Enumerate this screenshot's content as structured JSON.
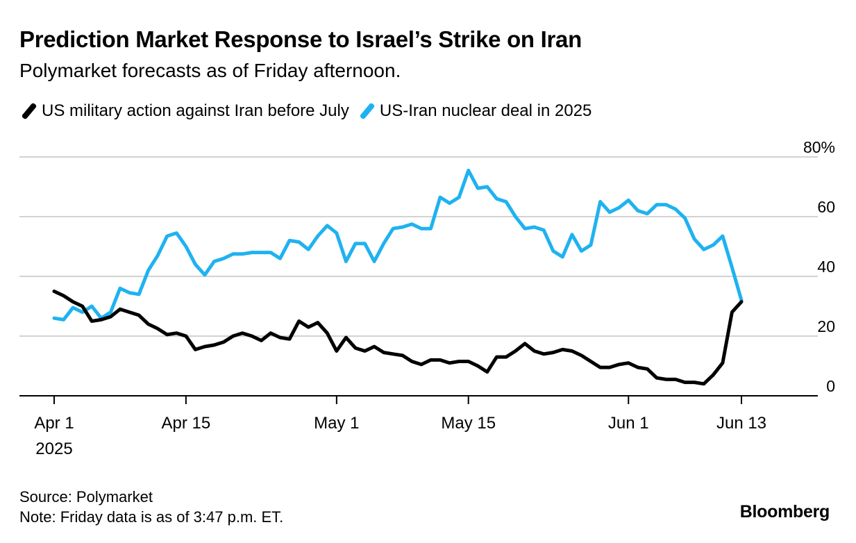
{
  "header": {
    "title": "Prediction Market Response to Israel’s Strike on Iran",
    "subtitle": "Polymarket forecasts as of Friday afternoon."
  },
  "legend": {
    "items": [
      {
        "label": "US military action against Iran before July",
        "color": "#000000"
      },
      {
        "label": "US-Iran nuclear deal in 2025",
        "color": "#1fb2f0"
      }
    ]
  },
  "chart_data": {
    "type": "line",
    "x_start_label": "Apr 1 2025",
    "x_days_span": 73,
    "xticks": [
      {
        "day": 0,
        "label": "Apr 1",
        "sublabel": "2025"
      },
      {
        "day": 14,
        "label": "Apr 15"
      },
      {
        "day": 30,
        "label": "May 1"
      },
      {
        "day": 44,
        "label": "May 15"
      },
      {
        "day": 61,
        "label": "Jun 1"
      },
      {
        "day": 73,
        "label": "Jun 13"
      }
    ],
    "yticks": [
      {
        "value": 0,
        "label": "0"
      },
      {
        "value": 20,
        "label": "20"
      },
      {
        "value": 40,
        "label": "40"
      },
      {
        "value": 60,
        "label": "60"
      },
      {
        "value": 80,
        "label": "80%"
      }
    ],
    "ylim": [
      0,
      80
    ],
    "grid": true,
    "legend_position": "top-left",
    "series": [
      {
        "name": "US military action against Iran before July",
        "color": "#000000",
        "x": [
          0,
          1,
          2,
          3,
          4,
          5,
          6,
          7,
          8,
          9,
          10,
          11,
          12,
          13,
          14,
          15,
          16,
          17,
          18,
          19,
          20,
          21,
          22,
          23,
          24,
          25,
          26,
          27,
          28,
          29,
          30,
          31,
          32,
          33,
          34,
          35,
          36,
          37,
          38,
          39,
          40,
          41,
          42,
          43,
          44,
          45,
          46,
          47,
          48,
          49,
          50,
          51,
          52,
          53,
          54,
          55,
          56,
          57,
          58,
          59,
          60,
          61,
          62,
          63,
          64,
          65,
          66,
          67,
          68,
          69,
          70,
          71,
          72,
          73
        ],
        "values": [
          35,
          33.5,
          31.5,
          30,
          25,
          25.5,
          26.5,
          29,
          28,
          27,
          24,
          22.5,
          20.5,
          21,
          20,
          15.5,
          16.5,
          17,
          18,
          20,
          21,
          20,
          18.5,
          21,
          19.5,
          19,
          25,
          23,
          24.5,
          21,
          15,
          19.5,
          16,
          15,
          16.5,
          14.5,
          14,
          13.5,
          11.5,
          10.5,
          12,
          12,
          11,
          11.5,
          11.5,
          10,
          8,
          13,
          13,
          15,
          17.5,
          15,
          14,
          14.5,
          15.5,
          15,
          13.5,
          11.5,
          9.5,
          9.5,
          10.5,
          11,
          9.5,
          9,
          6,
          5.5,
          5.5,
          4.5,
          4.5,
          4,
          7,
          11,
          28,
          31.5
        ]
      },
      {
        "name": "US-Iran nuclear deal in 2025",
        "color": "#1fb2f0",
        "x": [
          0,
          1,
          2,
          3,
          4,
          5,
          6,
          7,
          8,
          9,
          10,
          11,
          12,
          13,
          14,
          15,
          16,
          17,
          18,
          19,
          20,
          21,
          22,
          23,
          24,
          25,
          26,
          27,
          28,
          29,
          30,
          31,
          32,
          33,
          34,
          35,
          36,
          37,
          38,
          39,
          40,
          41,
          42,
          43,
          44,
          45,
          46,
          47,
          48,
          49,
          50,
          51,
          52,
          53,
          54,
          55,
          56,
          57,
          58,
          59,
          60,
          61,
          62,
          63,
          64,
          65,
          66,
          67,
          68,
          69,
          70,
          71,
          72,
          73
        ],
        "values": [
          26,
          25.5,
          29.5,
          28,
          30,
          26,
          28,
          36,
          34.5,
          34,
          42,
          47,
          53.5,
          54.5,
          50,
          44,
          40.5,
          45,
          46,
          47.5,
          47.5,
          48,
          48,
          48,
          46,
          52,
          51.5,
          49,
          53.5,
          57,
          54.5,
          45,
          51,
          51,
          45,
          51,
          56,
          56.5,
          57.5,
          56,
          56,
          66.5,
          64.5,
          66.5,
          75.5,
          69.5,
          70,
          66,
          65,
          60,
          56,
          56.5,
          55.5,
          48.5,
          46.5,
          54,
          48.5,
          50.5,
          65,
          61.5,
          63,
          65.5,
          62,
          61,
          64,
          64,
          62.5,
          59.5,
          52.5,
          49,
          50.5,
          53.5,
          43,
          32
        ]
      }
    ]
  },
  "footer": {
    "source": "Source: Polymarket",
    "note": "Note: Friday data is as of 3:47 p.m. ET.",
    "brand": "Bloomberg"
  }
}
